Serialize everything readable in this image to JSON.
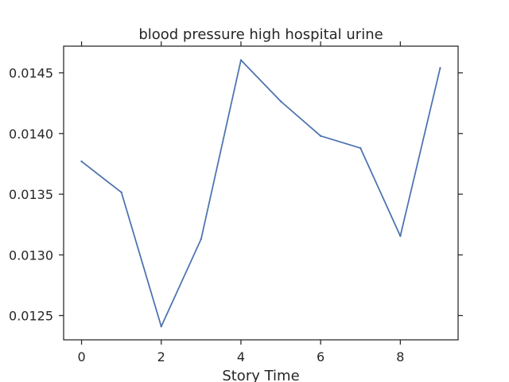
{
  "chart_data": {
    "type": "line",
    "title": "blood pressure high hospital urine",
    "xlabel": "Story Time",
    "ylabel": "",
    "x": [
      0,
      1,
      2,
      3,
      4,
      5,
      6,
      7,
      8,
      9
    ],
    "series": [
      {
        "values": [
          0.01377,
          0.013515,
          0.01241,
          0.01313,
          0.014605,
          0.014265,
          0.01398,
          0.01388,
          0.013155,
          0.01454
        ]
      }
    ],
    "xlim": [
      -0.45,
      9.45
    ],
    "ylim": [
      0.0123,
      0.01472
    ],
    "xticks": [
      0,
      2,
      4,
      6,
      8
    ],
    "xtick_labels": [
      "0",
      "2",
      "4",
      "6",
      "8"
    ],
    "yticks": [
      0.0125,
      0.013,
      0.0135,
      0.014,
      0.0145
    ],
    "ytick_labels": [
      "0.0125",
      "0.0130",
      "0.0135",
      "0.0140",
      "0.0145"
    ],
    "grid": false,
    "colors": {
      "line": "#4c72b0",
      "axes": "#262626"
    }
  }
}
